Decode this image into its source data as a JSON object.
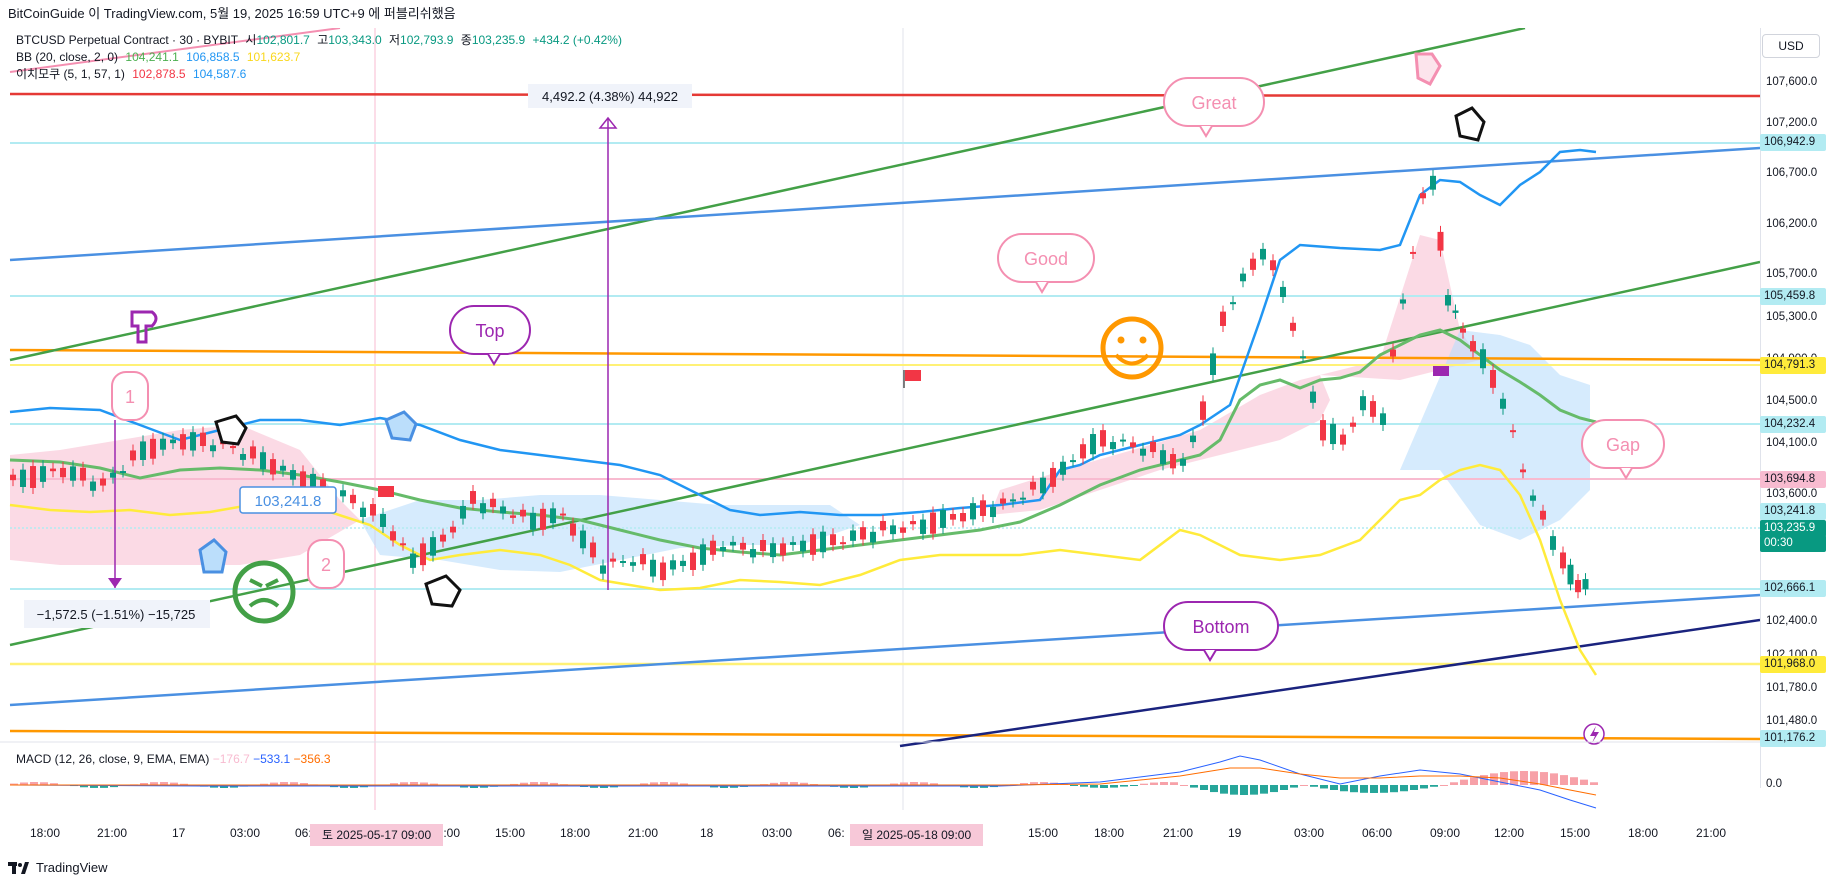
{
  "header": {
    "publish_line": "BitCoinGuide 이 TradingView.com, 5월 19, 2025 16:59 UTC+9 에 퍼블리쉬했음"
  },
  "legend": {
    "symbol": "BTCUSD Perpetual Contract · 30 · BYBIT",
    "open_label": "시",
    "open": "102,801.7",
    "high_label": "고",
    "high": "103,343.0",
    "low_label": "저",
    "low": "102,793.9",
    "close_label": "종",
    "close": "103,235.9",
    "change": "+434.2 (+0.42%)",
    "bb_label": "BB (20, close, 2, 0)",
    "bb_basis": "104,241.1",
    "bb_upper": "106,858.5",
    "bb_lower": "101,623.7",
    "ichimoku_label": "이치모쿠 (5, 1, 57, 1)",
    "ichi_a": "102,878.5",
    "ichi_b": "104,587.6",
    "macd_label": "MACD (12, 26, close, 9, EMA, EMA)",
    "macd_hist": "−176.7",
    "macd_line": "−533.1",
    "macd_signal": "−356.3"
  },
  "price_axis": {
    "currency": "USD",
    "ticks": [
      "107,600.0",
      "107,200.0",
      "106,700.0",
      "106,200.0",
      "105,700.0",
      "105,300.0",
      "104,900.0",
      "104,500.0",
      "104,100.0",
      "103,600.0",
      "103,200.0",
      "102,400.0",
      "102,100.0",
      "101,780.0",
      "101,480.0"
    ],
    "macd_zero": "0.0",
    "tags": [
      {
        "label": "106,942.9",
        "bg": "#b2ebf2",
        "fg": "#131722"
      },
      {
        "label": "105,459.8",
        "bg": "#b2ebf2",
        "fg": "#131722"
      },
      {
        "label": "104,791.3",
        "bg": "#ffeb3b",
        "fg": "#131722"
      },
      {
        "label": "104,232.4",
        "bg": "#b2ebf2",
        "fg": "#131722"
      },
      {
        "label": "103,694.8",
        "bg": "#f8bbd0",
        "fg": "#131722"
      },
      {
        "label": "103,241.8",
        "bg": "#b2ebf2",
        "fg": "#131722"
      },
      {
        "label": "103,235.9",
        "bg": "#089981",
        "fg": "#ffffff"
      },
      {
        "label": "00:30",
        "bg": "#089981",
        "fg": "#ffffff"
      },
      {
        "label": "102,666.1",
        "bg": "#b2ebf2",
        "fg": "#131722"
      },
      {
        "label": "101,968.0",
        "bg": "#ffeb3b",
        "fg": "#131722"
      },
      {
        "label": "101,176.2",
        "bg": "#b2ebf2",
        "fg": "#131722"
      }
    ]
  },
  "time_axis": {
    "labels": [
      "18:00",
      "21:00",
      "17",
      "03:00",
      "06:",
      "12:00",
      "15:00",
      "18:00",
      "21:00",
      "18",
      "03:00",
      "06:",
      "12:00",
      "15:00",
      "18:00",
      "21:00",
      "19",
      "03:00",
      "06:00",
      "09:00",
      "12:00",
      "15:00",
      "18:00",
      "21:00"
    ],
    "date_tag_1": "토 2025-05-17  09:00",
    "date_tag_2": "일 2025-05-18  09:00"
  },
  "annotations": {
    "measure_up": "4,492.2 (4.38%) 44,922",
    "measure_down": "−1,572.5 (−1.51%) −15,725",
    "price_label": "103,241.8",
    "bubble_top": "Top",
    "bubble_good": "Good",
    "bubble_great": "Great",
    "bubble_gap": "Gap",
    "bubble_bottom": "Bottom",
    "num_1": "1",
    "num_2": "2"
  },
  "colors": {
    "up": "#089981",
    "down": "#f23645",
    "bb_basis": "#4caf50",
    "bb_upper": "#2196f3",
    "bb_lower": "#ffeb3b",
    "trend_green": "#43a047",
    "trend_blue": "#4a90e2",
    "trend_navy": "#1a237e",
    "hline_red": "#e53935",
    "hline_orange": "#ff9800",
    "hline_yellow": "#fff176"
  },
  "footer": {
    "brand": "TradingView"
  }
}
